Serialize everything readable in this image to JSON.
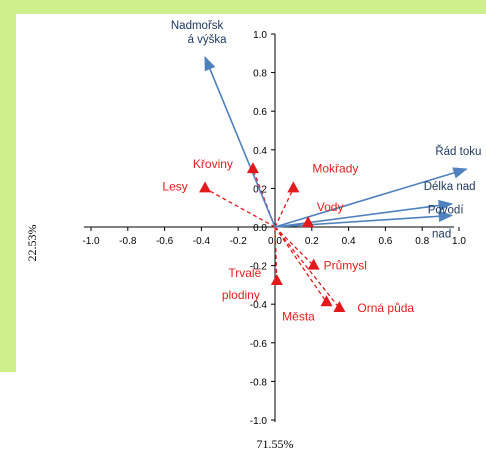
{
  "chart_data": {
    "type": "scatter",
    "subtype": "pca-biplot",
    "xlabel": "71.55%",
    "ylabel": "22.53%",
    "xlim": [
      -1.0,
      1.0
    ],
    "ylim": [
      -1.0,
      1.0
    ],
    "x_ticks": [
      "-1.0",
      "-0.8",
      "-0.6",
      "-0.4",
      "-0.2",
      "0.0",
      "0.2",
      "0.4",
      "0.6",
      "0.8",
      "1.0"
    ],
    "y_ticks": [
      "1.0",
      "0.8",
      "0.6",
      "0.4",
      "0.2",
      "0.0",
      "-0.2",
      "-0.4",
      "-0.6",
      "-0.8",
      "-1.0"
    ],
    "grid": false,
    "colors": {
      "environment": "#4f81bd",
      "landuse": "#e31a1c",
      "text_env": "#1f3a60"
    },
    "env_vectors": [
      {
        "name": "Nadmořsk á výška",
        "x": -0.38,
        "y": 0.88
      },
      {
        "name": "Řád toku",
        "x": 1.04,
        "y": 0.3
      },
      {
        "name": "Délka nad",
        "x": 0.96,
        "y": 0.12
      },
      {
        "name": "Povodí nad",
        "x": 0.96,
        "y": 0.06
      }
    ],
    "landuse_points": [
      {
        "name": "Křoviny",
        "x": -0.12,
        "y": 0.3
      },
      {
        "name": "Lesy",
        "x": -0.38,
        "y": 0.2
      },
      {
        "name": "Mokřady",
        "x": 0.1,
        "y": 0.2
      },
      {
        "name": "Vody",
        "x": 0.18,
        "y": 0.02
      },
      {
        "name": "Průmysl",
        "x": 0.21,
        "y": -0.2
      },
      {
        "name": "Trvalé plodiny",
        "x": 0.01,
        "y": -0.28
      },
      {
        "name": "Města",
        "x": 0.28,
        "y": -0.39
      },
      {
        "name": "Orná půda",
        "x": 0.35,
        "y": -0.42
      }
    ]
  }
}
